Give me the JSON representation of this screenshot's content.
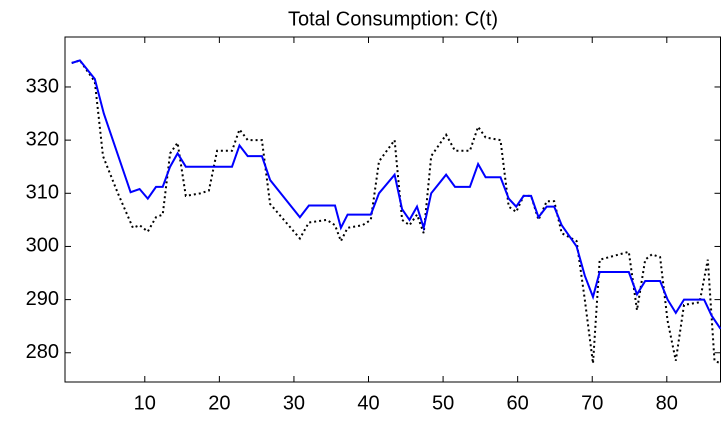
{
  "chart_data": {
    "type": "line",
    "title": "Total Consumption: C(t)",
    "xlim": [
      -0.7,
      87.2
    ],
    "ylim": [
      274.5,
      339.4
    ],
    "xticks": [
      10,
      20,
      30,
      40,
      50,
      60,
      70,
      80
    ],
    "yticks": [
      280,
      290,
      300,
      310,
      320,
      330
    ],
    "series": [
      {
        "name": "solid",
        "color": "#0000ff",
        "dash": "solid",
        "x": [
          0.2,
          1.3,
          3.3,
          4.5,
          8.1,
          9.3,
          10.4,
          11.5,
          12.4,
          13.4,
          14.4,
          15.5,
          21.7,
          22.7,
          23.8,
          25.7,
          26.8,
          30.8,
          32.0,
          35.5,
          36.3,
          37.2,
          40.3,
          41.4,
          43.5,
          44.5,
          45.5,
          46.5,
          47.4,
          48.4,
          50.4,
          51.6,
          53.6,
          54.7,
          55.7,
          57.7,
          58.8,
          59.8,
          60.8,
          61.8,
          62.8,
          63.9,
          64.9,
          65.9,
          67.9,
          69.0,
          70.1,
          71.0,
          74.9,
          76.0,
          77.1,
          79.1,
          80.1,
          81.2,
          82.3,
          85.0,
          86.0,
          87.2
        ],
        "values": [
          334.5,
          335,
          331.5,
          325,
          310.2,
          310.8,
          309,
          311.2,
          311.2,
          315,
          317.5,
          315,
          315,
          319,
          317,
          317,
          312.5,
          305.5,
          307.7,
          307.7,
          303.5,
          306,
          306,
          310,
          313.5,
          307,
          305,
          307.5,
          303.5,
          310,
          313.5,
          311.2,
          311.2,
          315.5,
          313,
          313,
          309,
          307.5,
          309.5,
          309.5,
          305.5,
          307.5,
          307.5,
          304,
          300,
          294.5,
          290.5,
          295.2,
          295.2,
          291,
          293.5,
          293.5,
          290,
          287.5,
          290,
          290,
          287,
          284.5
        ]
      },
      {
        "name": "dotted",
        "color": "#000000",
        "dash": "dotted",
        "x": [
          0.2,
          1.3,
          3.3,
          4.4,
          6.4,
          8.4,
          9.3,
          10.4,
          11.5,
          12.4,
          13.4,
          14.4,
          15.5,
          17.5,
          18.6,
          19.7,
          21.7,
          22.7,
          23.8,
          25.7,
          26.8,
          30.8,
          32.0,
          34.4,
          35.5,
          36.3,
          37.2,
          39.2,
          40.3,
          41.4,
          43.5,
          44.5,
          45.5,
          46.5,
          47.4,
          48.4,
          50.4,
          51.6,
          53.6,
          54.7,
          55.7,
          57.7,
          58.8,
          59.8,
          60.8,
          61.8,
          62.8,
          63.9,
          64.9,
          65.9,
          67.9,
          69.0,
          70.1,
          71.0,
          74.9,
          76.0,
          77.1,
          78.0,
          79.1,
          80.1,
          81.2,
          82.3,
          84.4,
          85.5,
          86.4,
          87.2
        ],
        "values": [
          334.5,
          335,
          331,
          317,
          310,
          303.5,
          304,
          302.8,
          305.5,
          306,
          317.5,
          319.5,
          309.5,
          310,
          310.5,
          318,
          318,
          322,
          320,
          320,
          308,
          301.5,
          304.5,
          305,
          304,
          301,
          303.5,
          304,
          305,
          316,
          320,
          305,
          304,
          306,
          302.5,
          317,
          321,
          318,
          318,
          322.5,
          320.5,
          320,
          307.5,
          306.5,
          309.5,
          309.5,
          305,
          308.5,
          308.5,
          302.5,
          301,
          290,
          278,
          297.5,
          299,
          288,
          297.5,
          298.5,
          298,
          286,
          278.5,
          289,
          289.5,
          297.5,
          278.5,
          278
        ]
      }
    ]
  }
}
